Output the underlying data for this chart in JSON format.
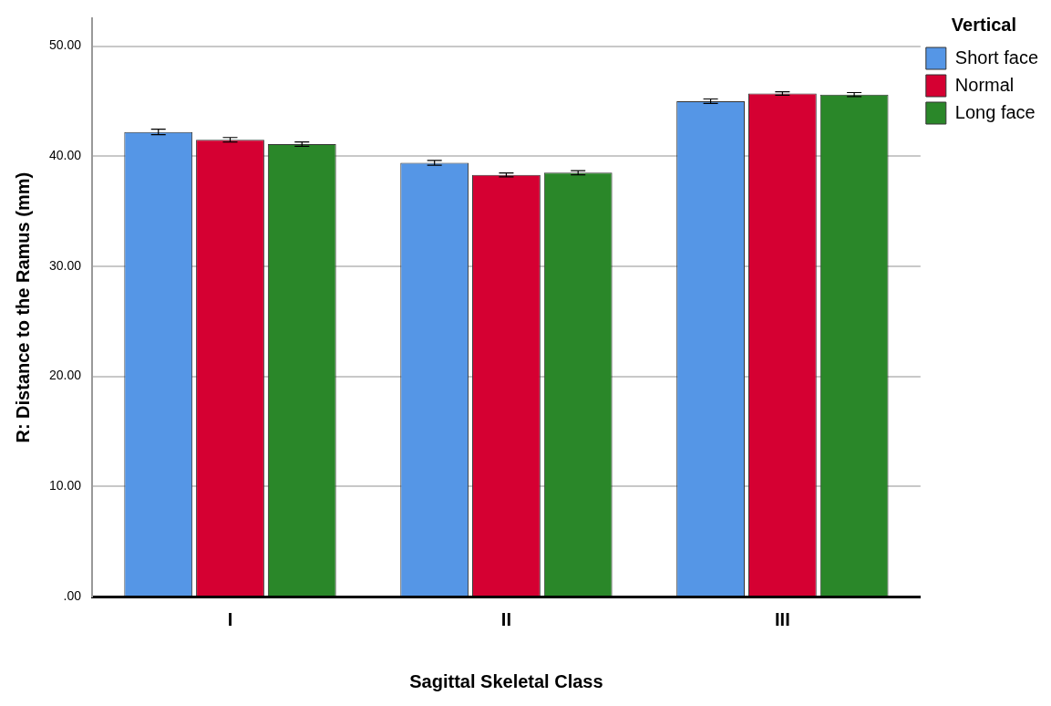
{
  "chart_data": {
    "type": "bar",
    "xlabel": "Sagittal Skeletal Class",
    "ylabel": "R: Distance to the Ramus (mm)",
    "legend_title": "Vertical",
    "legend": "top right",
    "grid": "y",
    "categories": [
      "I",
      "II",
      "III"
    ],
    "series": [
      {
        "name": "Short face",
        "color": "#5596e6",
        "values": [
          42.2,
          39.4,
          45.0
        ],
        "errors": [
          0.25,
          0.22,
          0.2
        ]
      },
      {
        "name": "Normal",
        "color": "#d50032",
        "values": [
          41.5,
          38.3,
          45.7
        ],
        "errors": [
          0.2,
          0.18,
          0.16
        ]
      },
      {
        "name": "Long face",
        "color": "#2a8729",
        "values": [
          41.1,
          38.5,
          45.6
        ],
        "errors": [
          0.2,
          0.18,
          0.18
        ]
      }
    ],
    "ylim": [
      0,
      52.5
    ],
    "yticks": [
      {
        "value": 0,
        "label": ".00"
      },
      {
        "value": 10,
        "label": "10.00"
      },
      {
        "value": 20,
        "label": "20.00"
      },
      {
        "value": 30,
        "label": "30.00"
      },
      {
        "value": 40,
        "label": "40.00"
      },
      {
        "value": 50,
        "label": "50.00"
      }
    ]
  }
}
